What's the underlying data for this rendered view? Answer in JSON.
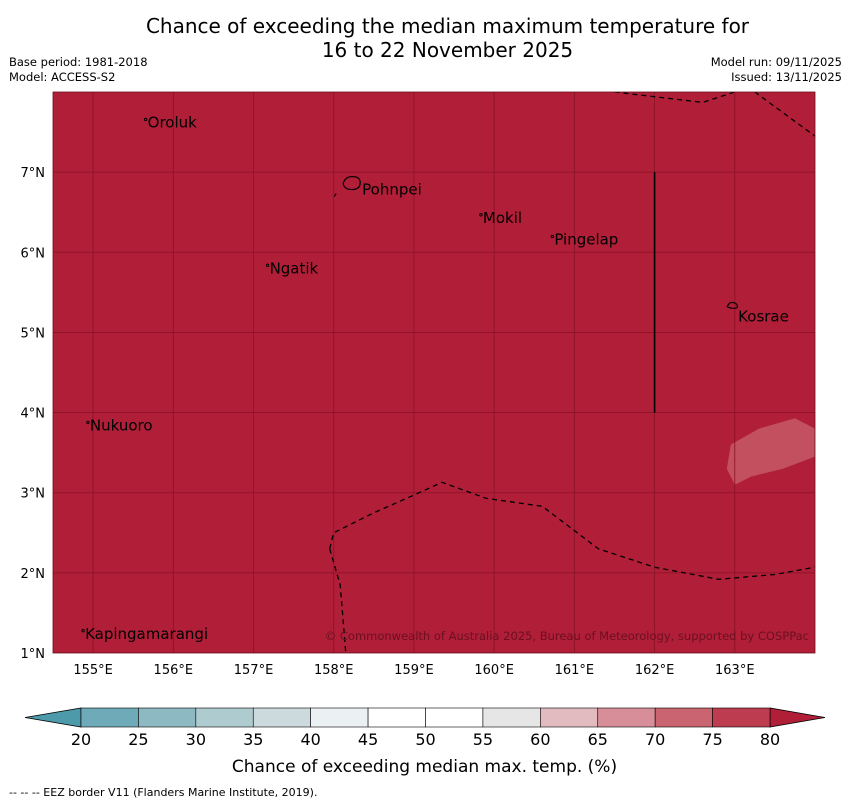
{
  "header": {
    "title_line1": "Chance of exceeding the median maximum temperature for",
    "title_line2": "16 to 22 November 2025",
    "base_period": "Base period: 1981-2018",
    "model": "Model: ACCESS-S2",
    "model_run": "Model run: 09/11/2025",
    "issued": "Issued: 13/11/2025"
  },
  "map": {
    "lon_range": [
      154.5,
      164.0
    ],
    "lat_range": [
      1.0,
      8.0
    ],
    "fill_color": "#b01e38",
    "grid_color": "#8a1226",
    "copyright": "© Commonwealth of Australia 2025, Bureau of Meteorology, supported by COSPPac",
    "lon_ticks": [
      {
        "value": 155,
        "label": "155°E"
      },
      {
        "value": 156,
        "label": "156°E"
      },
      {
        "value": 157,
        "label": "157°E"
      },
      {
        "value": 158,
        "label": "158°E"
      },
      {
        "value": 159,
        "label": "159°E"
      },
      {
        "value": 160,
        "label": "160°E"
      },
      {
        "value": 161,
        "label": "161°E"
      },
      {
        "value": 162,
        "label": "162°E"
      },
      {
        "value": 163,
        "label": "163°E"
      }
    ],
    "lat_ticks": [
      {
        "value": 1,
        "label": "1°N"
      },
      {
        "value": 2,
        "label": "2°N"
      },
      {
        "value": 3,
        "label": "3°N"
      },
      {
        "value": 4,
        "label": "4°N"
      },
      {
        "value": 5,
        "label": "5°N"
      },
      {
        "value": 6,
        "label": "6°N"
      },
      {
        "value": 7,
        "label": "7°N"
      }
    ],
    "places": [
      {
        "name": "Oroluk",
        "lon": 155.68,
        "lat": 7.62
      },
      {
        "name": "Pohnpei",
        "lon": 158.23,
        "lat": 6.87
      },
      {
        "name": "Mokil",
        "lon": 159.86,
        "lat": 6.43
      },
      {
        "name": "Pingelap",
        "lon": 160.75,
        "lat": 6.16
      },
      {
        "name": "Ngatik",
        "lon": 157.2,
        "lat": 5.8
      },
      {
        "name": "Kosrae",
        "lon": 162.98,
        "lat": 5.31
      },
      {
        "name": "Nukuoro",
        "lon": 154.96,
        "lat": 3.84
      },
      {
        "name": "Kapingamarangi",
        "lon": 154.9,
        "lat": 1.24
      }
    ],
    "eez_border_points": [
      [
        157.95,
        2.3
      ],
      [
        158.0,
        2.5
      ],
      [
        158.5,
        2.75
      ],
      [
        159.0,
        2.97
      ],
      [
        159.35,
        3.13
      ],
      [
        159.9,
        2.93
      ],
      [
        160.6,
        2.83
      ],
      [
        161.3,
        2.3
      ],
      [
        162.0,
        2.07
      ],
      [
        162.8,
        1.92
      ],
      [
        163.5,
        1.98
      ],
      [
        164.0,
        2.07
      ]
    ],
    "eez_border_lower": [
      [
        157.95,
        2.3
      ],
      [
        158.08,
        1.85
      ],
      [
        158.15,
        1.0
      ]
    ],
    "eez_border_top": [
      [
        161.5,
        8.0
      ],
      [
        162.6,
        7.87
      ],
      [
        163.0,
        8.0
      ]
    ],
    "eez_border_topright": [
      [
        163.25,
        8.0
      ],
      [
        164.0,
        7.45
      ]
    ],
    "boundary_line": {
      "lon": 162.0,
      "lat_from": 4.0,
      "lat_to": 7.0
    },
    "patch": {
      "label_value": 75,
      "outline": [
        [
          162.95,
          3.6
        ],
        [
          163.3,
          3.8
        ],
        [
          163.75,
          3.93
        ],
        [
          164.0,
          3.8
        ],
        [
          164.0,
          3.45
        ],
        [
          163.6,
          3.3
        ],
        [
          163.2,
          3.2
        ],
        [
          163.0,
          3.1
        ],
        [
          162.9,
          3.3
        ]
      ]
    }
  },
  "colorbar": {
    "ticks": [
      "20",
      "25",
      "30",
      "35",
      "40",
      "45",
      "50",
      "55",
      "60",
      "65",
      "70",
      "75",
      "80"
    ],
    "colors": [
      "#6eaab8",
      "#8db9c3",
      "#aecbcf",
      "#ccdadd",
      "#ebf0f2",
      "#ffffff",
      "#ffffff",
      "#e6e6e6",
      "#e2bbc1",
      "#d78e98",
      "#c96470",
      "#bd3c4f"
    ],
    "under_color": "#4d9aab",
    "over_color": "#b01e38",
    "label": "Chance of exceeding median max. temp. (%)"
  },
  "footnote": "--  --  -- EEZ border V11 (Flanders Marine Institute, 2019)."
}
